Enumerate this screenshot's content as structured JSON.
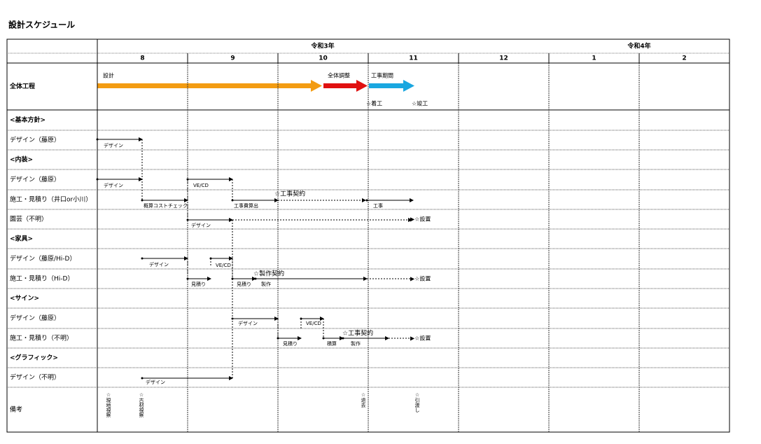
{
  "title": "設計スケジュール",
  "header": {
    "years": [
      "令和3年",
      "令和4年"
    ],
    "months": [
      "8",
      "9",
      "10",
      "11",
      "12",
      "1",
      "2"
    ]
  },
  "rows": [
    "全体工程",
    "<基本方針>",
    "デザイン（藤原）",
    "<内装>",
    "デザイン（藤原）",
    "施工・見積り（井口or小川）",
    "園芸（不明）",
    "<家具>",
    "デザイン（藤原/Hi-D）",
    "施工・見積り（Hi-D）",
    "<サイン>",
    "デザイン（藤原）",
    "施工・見積り（不明）",
    "<グラフィック>",
    "デザイン（不明）",
    "備考"
  ],
  "annotations": [
    "設計",
    "全体調整",
    "工事期間",
    "☆着工",
    "☆竣工",
    "デザイン",
    "デザイン",
    "VE/CD",
    "概算コストチェック",
    "☆工事契約",
    "工事費算出",
    "工事",
    "デザイン",
    "▶☆設置",
    "デザイン",
    "VE/CD",
    "見積り",
    "見積り",
    "製作",
    "☆製作契約",
    "▶☆設置",
    "デザイン",
    "VE/CD",
    "見積り",
    "積算",
    "製作",
    "☆工事契約",
    "▶☆設置",
    "デザイン"
  ],
  "remarks": [
    "☆現地視察",
    "☆古材視察",
    "☆退去",
    "☆引渡し"
  ]
}
